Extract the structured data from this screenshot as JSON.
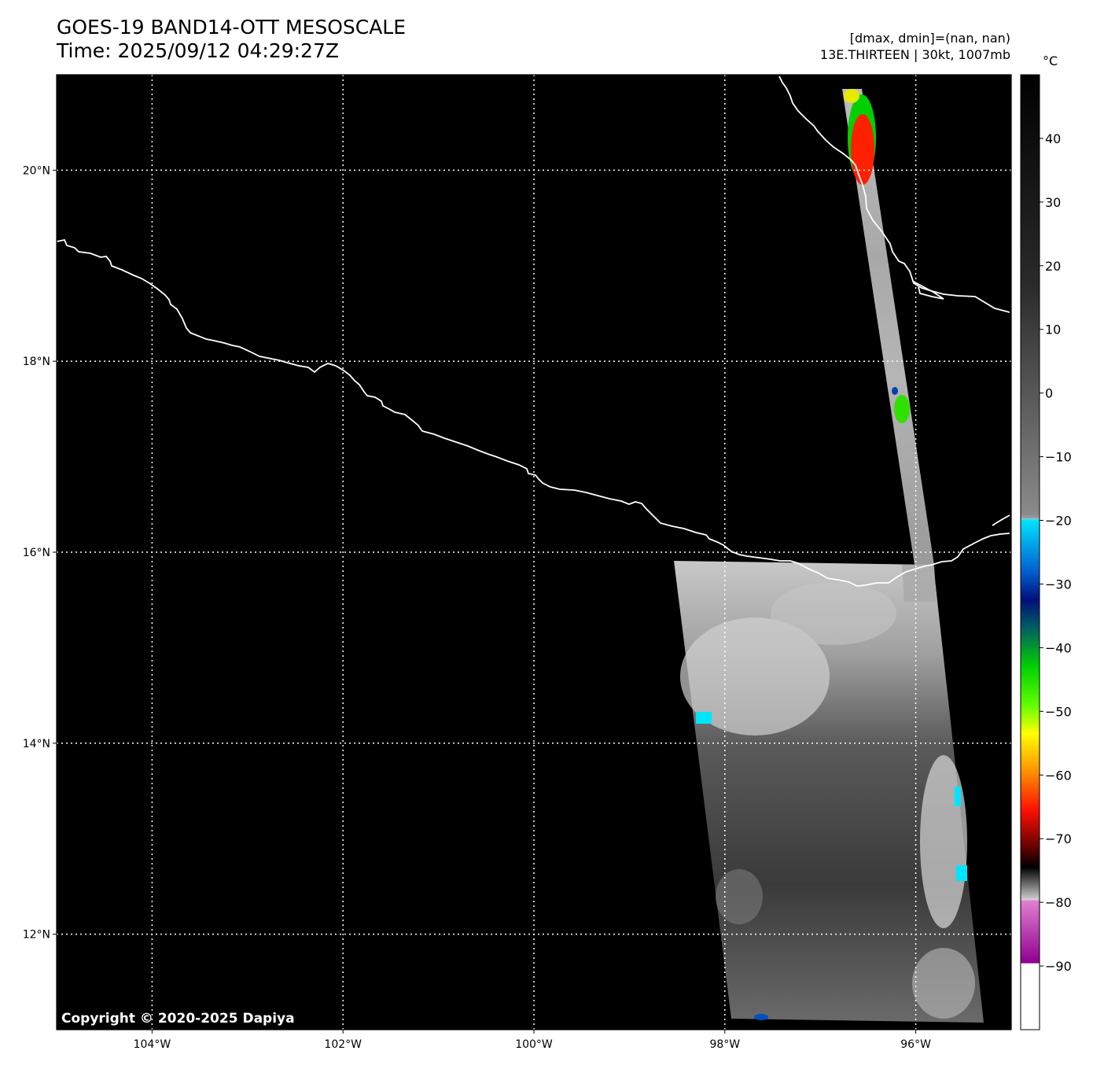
{
  "header": {
    "title_line1": "GOES-19 BAND14-OTT MESOSCALE",
    "title_line2": "Time: 2025/09/12 04:29:27Z",
    "stats_line": "[dmax, dmin]=(nan, nan)",
    "storm_line": "13E.THIRTEEN | 30kt, 1007mb"
  },
  "copyright": "Copyright © 2020-2025 Dapiya",
  "map": {
    "lon_range": [
      -105,
      -95
    ],
    "lat_range": [
      11,
      21
    ],
    "lon_ticks": [
      {
        "value": -104,
        "label": "104°W"
      },
      {
        "value": -102,
        "label": "102°W"
      },
      {
        "value": -100,
        "label": "100°W"
      },
      {
        "value": -98,
        "label": "98°W"
      },
      {
        "value": -96,
        "label": "96°W"
      }
    ],
    "lat_ticks": [
      {
        "value": 20,
        "label": "20°N"
      },
      {
        "value": 18,
        "label": "18°N"
      },
      {
        "value": 16,
        "label": "16°N"
      },
      {
        "value": 14,
        "label": "14°N"
      },
      {
        "value": 12,
        "label": "12°N"
      }
    ],
    "gridlines": true,
    "background_color": "#000000",
    "coastline_color": "#ffffff"
  },
  "colorbar": {
    "unit": "°C",
    "range": [
      -100,
      50
    ],
    "tick_labels": [
      {
        "value": 40,
        "label": "40"
      },
      {
        "value": 30,
        "label": "30"
      },
      {
        "value": 20,
        "label": "20"
      },
      {
        "value": 10,
        "label": "10"
      },
      {
        "value": 0,
        "label": "0"
      },
      {
        "value": -10,
        "label": "−10"
      },
      {
        "value": -20,
        "label": "−20"
      },
      {
        "value": -30,
        "label": "−30"
      },
      {
        "value": -40,
        "label": "−40"
      },
      {
        "value": -50,
        "label": "−50"
      },
      {
        "value": -60,
        "label": "−60"
      },
      {
        "value": -70,
        "label": "−70"
      },
      {
        "value": -80,
        "label": "−80"
      },
      {
        "value": -90,
        "label": "−90"
      }
    ]
  }
}
